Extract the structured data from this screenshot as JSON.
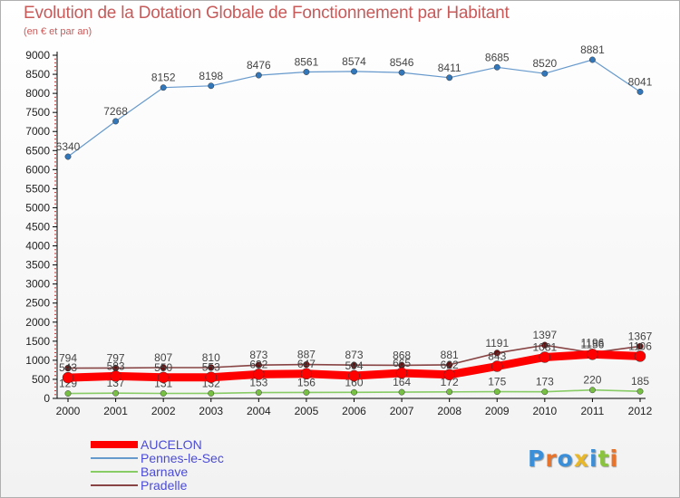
{
  "chart_data": {
    "type": "line",
    "title": "Evolution de la Dotation Globale de Fonctionnement par Habitant",
    "subtitle": "(en € et par an)",
    "xlabel": "",
    "ylabel": "",
    "x": [
      "2000",
      "2001",
      "2002",
      "2003",
      "2004",
      "2005",
      "2006",
      "2007",
      "2008",
      "2009",
      "2010",
      "2011",
      "2012"
    ],
    "ylim": [
      0,
      9000
    ],
    "yticks": [
      0,
      500,
      1000,
      1500,
      2000,
      2500,
      3000,
      3500,
      4000,
      4500,
      5000,
      5500,
      6000,
      6500,
      7000,
      7500,
      8000,
      8500,
      9000
    ],
    "ytick_labels": [
      "0",
      "500",
      "1000",
      "1500",
      "2000",
      "2500",
      "3000",
      "3500",
      "4000",
      "4500",
      "5000",
      "5500",
      "6000",
      "6500",
      "7000",
      "7500",
      "8000",
      "8500",
      "9000"
    ],
    "series": [
      {
        "name": "Barnave",
        "color": "#88cc66",
        "marker": "#77c044",
        "values": [
          129,
          137,
          131,
          132,
          153,
          156,
          160,
          164,
          172,
          175,
          173,
          220,
          185
        ]
      },
      {
        "name": "Pradelle",
        "color": "#884444",
        "marker": "#661111",
        "values": [
          794,
          797,
          807,
          810,
          873,
          887,
          873,
          868,
          881,
          1191,
          1397,
          1196,
          1367
        ]
      },
      {
        "name": "AUCELON",
        "color": "#ff0000",
        "marker": "#ff0000",
        "values": [
          543,
          583,
          550,
          553,
          632,
          647,
          594,
          665,
          622,
          843,
          1081,
          1156,
          1106
        ]
      },
      {
        "name": "Pennes-le-Sec",
        "color": "#6699cc",
        "marker": "#3377bb",
        "values": [
          6340,
          7268,
          8152,
          8198,
          8476,
          8561,
          8574,
          8546,
          8411,
          8685,
          8520,
          8881,
          8041
        ]
      }
    ],
    "legend_order": [
      "AUCELON",
      "Pennes-le-Sec",
      "Barnave",
      "Pradelle"
    ],
    "legend_position": "bottom-left",
    "grid": false
  },
  "logo": {
    "letters": [
      "P",
      "r",
      "o",
      "x",
      "i",
      "t",
      "i"
    ],
    "colors": [
      "#3b8fd8",
      "#e8732a",
      "#3b8fd8",
      "#e8b82a",
      "#3b8fd8",
      "#8ac43c",
      "#e8732a"
    ]
  }
}
